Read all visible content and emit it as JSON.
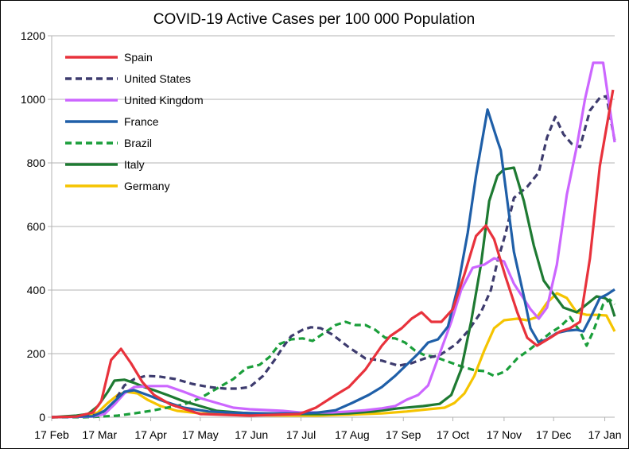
{
  "chart_data": {
    "type": "line",
    "title": "COVID-19 Active Cases per 100 000 Population",
    "xlabel": "",
    "ylabel": "",
    "ylim": [
      0,
      1200
    ],
    "yticks": [
      0,
      200,
      400,
      600,
      800,
      1000,
      1200
    ],
    "x_unit": "days since 17 Feb",
    "xlim": [
      0,
      341
    ],
    "xticks": [
      {
        "label": "17 Feb",
        "day": 0
      },
      {
        "label": "17 Mar",
        "day": 29
      },
      {
        "label": "17 Apr",
        "day": 60
      },
      {
        "label": "17 May",
        "day": 90
      },
      {
        "label": "17 Jun",
        "day": 121
      },
      {
        "label": "17 Jul",
        "day": 151
      },
      {
        "label": "17 Aug",
        "day": 182
      },
      {
        "label": "17 Sep",
        "day": 213
      },
      {
        "label": "17 Oct",
        "day": 243
      },
      {
        "label": "17 Nov",
        "day": 274
      },
      {
        "label": "17 Dec",
        "day": 304
      },
      {
        "label": "17 Jan",
        "day": 335
      }
    ],
    "grid": "horizontal",
    "legend_position": "top-left",
    "series": [
      {
        "name": "Spain",
        "color": "#e8323c",
        "dash": "solid",
        "points": [
          [
            0,
            0
          ],
          [
            15,
            2
          ],
          [
            25,
            15
          ],
          [
            30,
            50
          ],
          [
            36,
            180
          ],
          [
            42,
            215
          ],
          [
            48,
            170
          ],
          [
            55,
            110
          ],
          [
            62,
            70
          ],
          [
            72,
            40
          ],
          [
            90,
            10
          ],
          [
            120,
            5
          ],
          [
            150,
            10
          ],
          [
            160,
            30
          ],
          [
            172,
            70
          ],
          [
            180,
            95
          ],
          [
            190,
            150
          ],
          [
            200,
            225
          ],
          [
            205,
            255
          ],
          [
            212,
            280
          ],
          [
            218,
            310
          ],
          [
            224,
            330
          ],
          [
            230,
            300
          ],
          [
            236,
            300
          ],
          [
            243,
            340
          ],
          [
            250,
            450
          ],
          [
            257,
            570
          ],
          [
            263,
            603
          ],
          [
            268,
            560
          ],
          [
            275,
            440
          ],
          [
            282,
            330
          ],
          [
            288,
            250
          ],
          [
            294,
            225
          ],
          [
            302,
            250
          ],
          [
            308,
            270
          ],
          [
            314,
            280
          ],
          [
            320,
            300
          ],
          [
            326,
            500
          ],
          [
            332,
            790
          ],
          [
            340,
            1030
          ]
        ]
      },
      {
        "name": "United States",
        "color": "#3d3b6e",
        "dash": "dashed",
        "points": [
          [
            0,
            0
          ],
          [
            20,
            2
          ],
          [
            30,
            10
          ],
          [
            38,
            50
          ],
          [
            44,
            100
          ],
          [
            50,
            120
          ],
          [
            57,
            130
          ],
          [
            65,
            128
          ],
          [
            75,
            120
          ],
          [
            85,
            105
          ],
          [
            95,
            95
          ],
          [
            105,
            90
          ],
          [
            113,
            90
          ],
          [
            120,
            95
          ],
          [
            128,
            130
          ],
          [
            135,
            180
          ],
          [
            140,
            220
          ],
          [
            145,
            255
          ],
          [
            152,
            275
          ],
          [
            157,
            283
          ],
          [
            163,
            280
          ],
          [
            170,
            260
          ],
          [
            180,
            220
          ],
          [
            190,
            185
          ],
          [
            200,
            178
          ],
          [
            210,
            162
          ],
          [
            218,
            170
          ],
          [
            226,
            185
          ],
          [
            235,
            195
          ],
          [
            245,
            230
          ],
          [
            252,
            270
          ],
          [
            260,
            330
          ],
          [
            266,
            400
          ],
          [
            270,
            490
          ],
          [
            275,
            580
          ],
          [
            280,
            690
          ],
          [
            288,
            725
          ],
          [
            295,
            770
          ],
          [
            300,
            880
          ],
          [
            305,
            945
          ],
          [
            310,
            890
          ],
          [
            315,
            860
          ],
          [
            320,
            850
          ],
          [
            326,
            965
          ],
          [
            332,
            1005
          ],
          [
            336,
            1010
          ],
          [
            341,
            870
          ]
        ]
      },
      {
        "name": "United Kingdom",
        "color": "#cc66ff",
        "dash": "solid",
        "points": [
          [
            0,
            0
          ],
          [
            25,
            2
          ],
          [
            32,
            10
          ],
          [
            38,
            40
          ],
          [
            44,
            75
          ],
          [
            50,
            95
          ],
          [
            60,
            98
          ],
          [
            70,
            98
          ],
          [
            80,
            80
          ],
          [
            90,
            60
          ],
          [
            100,
            45
          ],
          [
            110,
            30
          ],
          [
            120,
            25
          ],
          [
            140,
            20
          ],
          [
            150,
            15
          ],
          [
            160,
            15
          ],
          [
            170,
            15
          ],
          [
            180,
            18
          ],
          [
            190,
            22
          ],
          [
            200,
            28
          ],
          [
            208,
            35
          ],
          [
            215,
            55
          ],
          [
            222,
            70
          ],
          [
            228,
            100
          ],
          [
            235,
            200
          ],
          [
            242,
            300
          ],
          [
            248,
            400
          ],
          [
            255,
            470
          ],
          [
            262,
            480
          ],
          [
            268,
            500
          ],
          [
            274,
            490
          ],
          [
            280,
            420
          ],
          [
            285,
            380
          ],
          [
            290,
            340
          ],
          [
            295,
            310
          ],
          [
            300,
            345
          ],
          [
            306,
            480
          ],
          [
            312,
            700
          ],
          [
            318,
            850
          ],
          [
            323,
            1000
          ],
          [
            328,
            1115
          ],
          [
            334,
            1115
          ],
          [
            341,
            865
          ]
        ]
      },
      {
        "name": "France",
        "color": "#1f5fa8",
        "dash": "solid",
        "points": [
          [
            0,
            0
          ],
          [
            25,
            3
          ],
          [
            32,
            20
          ],
          [
            38,
            50
          ],
          [
            44,
            80
          ],
          [
            50,
            85
          ],
          [
            58,
            70
          ],
          [
            68,
            50
          ],
          [
            80,
            30
          ],
          [
            95,
            18
          ],
          [
            110,
            14
          ],
          [
            130,
            12
          ],
          [
            150,
            12
          ],
          [
            160,
            14
          ],
          [
            172,
            22
          ],
          [
            182,
            45
          ],
          [
            192,
            70
          ],
          [
            200,
            95
          ],
          [
            208,
            130
          ],
          [
            216,
            170
          ],
          [
            222,
            200
          ],
          [
            228,
            235
          ],
          [
            234,
            245
          ],
          [
            240,
            285
          ],
          [
            246,
            410
          ],
          [
            252,
            580
          ],
          [
            257,
            760
          ],
          [
            264,
            968
          ],
          [
            270,
            870
          ],
          [
            272,
            840
          ],
          [
            276,
            680
          ],
          [
            280,
            520
          ],
          [
            286,
            380
          ],
          [
            290,
            280
          ],
          [
            295,
            235
          ],
          [
            300,
            245
          ],
          [
            306,
            265
          ],
          [
            312,
            272
          ],
          [
            318,
            275
          ],
          [
            322,
            270
          ],
          [
            326,
            310
          ],
          [
            332,
            375
          ],
          [
            336,
            385
          ],
          [
            341,
            402
          ]
        ]
      },
      {
        "name": "Brazil",
        "color": "#1a9e3a",
        "dash": "dashed",
        "points": [
          [
            0,
            0
          ],
          [
            20,
            0
          ],
          [
            30,
            2
          ],
          [
            40,
            5
          ],
          [
            50,
            12
          ],
          [
            60,
            20
          ],
          [
            70,
            30
          ],
          [
            80,
            40
          ],
          [
            90,
            60
          ],
          [
            100,
            90
          ],
          [
            110,
            120
          ],
          [
            118,
            155
          ],
          [
            126,
            165
          ],
          [
            132,
            190
          ],
          [
            138,
            230
          ],
          [
            145,
            245
          ],
          [
            152,
            248
          ],
          [
            158,
            240
          ],
          [
            165,
            265
          ],
          [
            172,
            290
          ],
          [
            178,
            300
          ],
          [
            184,
            290
          ],
          [
            190,
            290
          ],
          [
            196,
            275
          ],
          [
            202,
            250
          ],
          [
            208,
            248
          ],
          [
            214,
            235
          ],
          [
            220,
            210
          ],
          [
            226,
            195
          ],
          [
            232,
            190
          ],
          [
            240,
            175
          ],
          [
            248,
            160
          ],
          [
            256,
            148
          ],
          [
            262,
            145
          ],
          [
            268,
            130
          ],
          [
            275,
            145
          ],
          [
            282,
            185
          ],
          [
            290,
            215
          ],
          [
            296,
            240
          ],
          [
            302,
            265
          ],
          [
            308,
            285
          ],
          [
            314,
            315
          ],
          [
            320,
            270
          ],
          [
            324,
            225
          ],
          [
            328,
            270
          ],
          [
            334,
            355
          ],
          [
            338,
            370
          ],
          [
            341,
            355
          ]
        ]
      },
      {
        "name": "Italy",
        "color": "#1e7a32",
        "dash": "solid",
        "points": [
          [
            0,
            0
          ],
          [
            15,
            5
          ],
          [
            22,
            10
          ],
          [
            28,
            35
          ],
          [
            34,
            80
          ],
          [
            38,
            115
          ],
          [
            44,
            118
          ],
          [
            50,
            108
          ],
          [
            56,
            95
          ],
          [
            62,
            85
          ],
          [
            70,
            70
          ],
          [
            80,
            50
          ],
          [
            90,
            35
          ],
          [
            100,
            20
          ],
          [
            120,
            12
          ],
          [
            150,
            10
          ],
          [
            165,
            10
          ],
          [
            180,
            12
          ],
          [
            195,
            18
          ],
          [
            210,
            28
          ],
          [
            225,
            35
          ],
          [
            235,
            42
          ],
          [
            242,
            70
          ],
          [
            248,
            150
          ],
          [
            254,
            300
          ],
          [
            260,
            480
          ],
          [
            265,
            680
          ],
          [
            270,
            760
          ],
          [
            274,
            780
          ],
          [
            280,
            785
          ],
          [
            286,
            680
          ],
          [
            292,
            540
          ],
          [
            298,
            430
          ],
          [
            305,
            380
          ],
          [
            310,
            345
          ],
          [
            318,
            330
          ],
          [
            324,
            355
          ],
          [
            330,
            380
          ],
          [
            335,
            375
          ],
          [
            338,
            365
          ],
          [
            341,
            317
          ]
        ]
      },
      {
        "name": "Germany",
        "color": "#f5c400",
        "dash": "solid",
        "points": [
          [
            0,
            0
          ],
          [
            20,
            3
          ],
          [
            28,
            15
          ],
          [
            34,
            45
          ],
          [
            40,
            70
          ],
          [
            45,
            80
          ],
          [
            52,
            75
          ],
          [
            58,
            55
          ],
          [
            66,
            35
          ],
          [
            76,
            20
          ],
          [
            90,
            12
          ],
          [
            110,
            8
          ],
          [
            130,
            6
          ],
          [
            160,
            5
          ],
          [
            180,
            8
          ],
          [
            200,
            12
          ],
          [
            215,
            18
          ],
          [
            228,
            25
          ],
          [
            238,
            30
          ],
          [
            244,
            45
          ],
          [
            250,
            75
          ],
          [
            256,
            130
          ],
          [
            262,
            210
          ],
          [
            268,
            280
          ],
          [
            274,
            305
          ],
          [
            282,
            310
          ],
          [
            288,
            305
          ],
          [
            294,
            315
          ],
          [
            300,
            360
          ],
          [
            306,
            390
          ],
          [
            312,
            375
          ],
          [
            318,
            330
          ],
          [
            324,
            322
          ],
          [
            330,
            322
          ],
          [
            336,
            320
          ],
          [
            341,
            270
          ]
        ]
      }
    ]
  }
}
